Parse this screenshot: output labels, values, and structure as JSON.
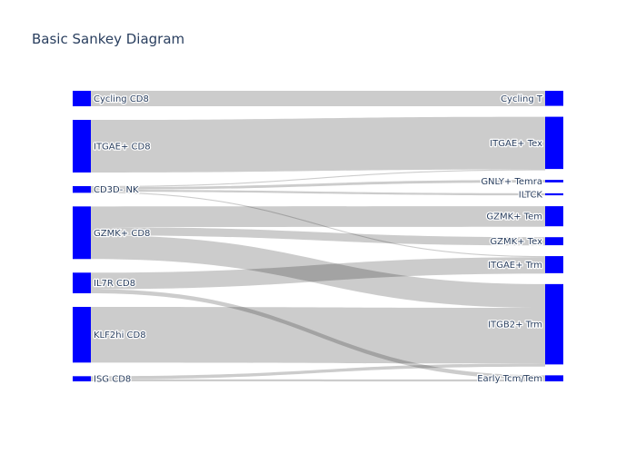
{
  "chart_data": {
    "type": "sankey",
    "title": "Basic Sankey Diagram",
    "colors": {
      "node": "#0000ff",
      "link": "rgba(0,0,0,0.2)",
      "title": "#2a3f5f"
    },
    "source_nodes": [
      "Cycling CD8",
      "ITGAE+ CD8",
      "CD3D- NK",
      "GZMK+ CD8",
      "IL7R CD8",
      "KLF2hi CD8",
      "ISG CD8"
    ],
    "target_nodes": [
      "Cycling T",
      "ITGAE+ Tex",
      "GNLY+ Temra",
      "ILTCK",
      "GZMK+ Tem",
      "GZMK+ Tex",
      "ITGAE+ Trm",
      "ITGB2+ Trm",
      "Early Tcm/Tem"
    ],
    "links": [
      {
        "source": "Cycling CD8",
        "target": "Cycling T",
        "value": 15
      },
      {
        "source": "ITGAE+ CD8",
        "target": "ITGAE+ Tex",
        "value": 51
      },
      {
        "source": "CD3D- NK",
        "target": "ITGAE+ Tex",
        "value": 1
      },
      {
        "source": "CD3D- NK",
        "target": "GNLY+ Temra",
        "value": 2.5
      },
      {
        "source": "CD3D- NK",
        "target": "ILTCK",
        "value": 2
      },
      {
        "source": "CD3D- NK",
        "target": "ITGAE+ Trm",
        "value": 1
      },
      {
        "source": "GZMK+ CD8",
        "target": "GZMK+ Tem",
        "value": 20
      },
      {
        "source": "GZMK+ CD8",
        "target": "GZMK+ Tex",
        "value": 8
      },
      {
        "source": "GZMK+ CD8",
        "target": "ITGB2+ Trm",
        "value": 23
      },
      {
        "source": "IL7R CD8",
        "target": "ITGAE+ Trm",
        "value": 16
      },
      {
        "source": "IL7R CD8",
        "target": "Early Tcm/Tem",
        "value": 4
      },
      {
        "source": "KLF2hi CD8",
        "target": "ITGB2+ Trm",
        "value": 54
      },
      {
        "source": "ISG CD8",
        "target": "ITGB2+ Trm",
        "value": 3
      },
      {
        "source": "ISG CD8",
        "target": "Early Tcm/Tem",
        "value": 2
      }
    ]
  }
}
